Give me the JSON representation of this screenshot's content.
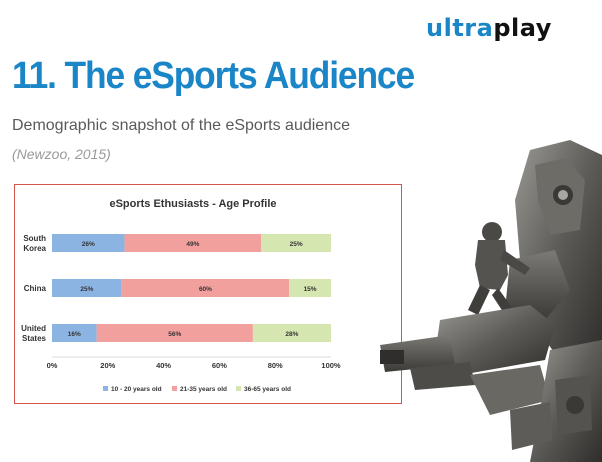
{
  "logo": {
    "part1": "ultra",
    "part2": "play"
  },
  "slide": {
    "title": "11. The eSports Audience",
    "subtitle": "Demographic snapshot of the eSports audience",
    "source": "(Newzoo, 2015)"
  },
  "chart_data": {
    "type": "bar",
    "stacked": true,
    "orientation": "horizontal",
    "title": "eSports Ethusiasts - Age Profile",
    "categories": [
      [
        "South",
        "Korea"
      ],
      [
        "China"
      ],
      [
        "United",
        "States"
      ]
    ],
    "series": [
      {
        "name": "10 - 20 years old",
        "values": [
          26,
          25,
          16
        ],
        "labels": [
          "26%",
          "25%",
          "16%"
        ],
        "color": "#8cb4e2"
      },
      {
        "name": "21-35 years old",
        "values": [
          49,
          60,
          56
        ],
        "labels": [
          "49%",
          "60%",
          "56%"
        ],
        "color": "#f2a09d"
      },
      {
        "name": "36-65 years old",
        "values": [
          25,
          15,
          28
        ],
        "labels": [
          "25%",
          "15%",
          "28%"
        ],
        "color": "#d6e6b0"
      }
    ],
    "xlim": [
      0,
      100
    ],
    "x_ticks": [
      "0%",
      "20%",
      "40%",
      "60%",
      "80%",
      "100%"
    ],
    "legend_position": "bottom",
    "grid": false
  },
  "colors": {
    "brand_blue": "#1a86c8",
    "chart_border": "#d9534f"
  }
}
